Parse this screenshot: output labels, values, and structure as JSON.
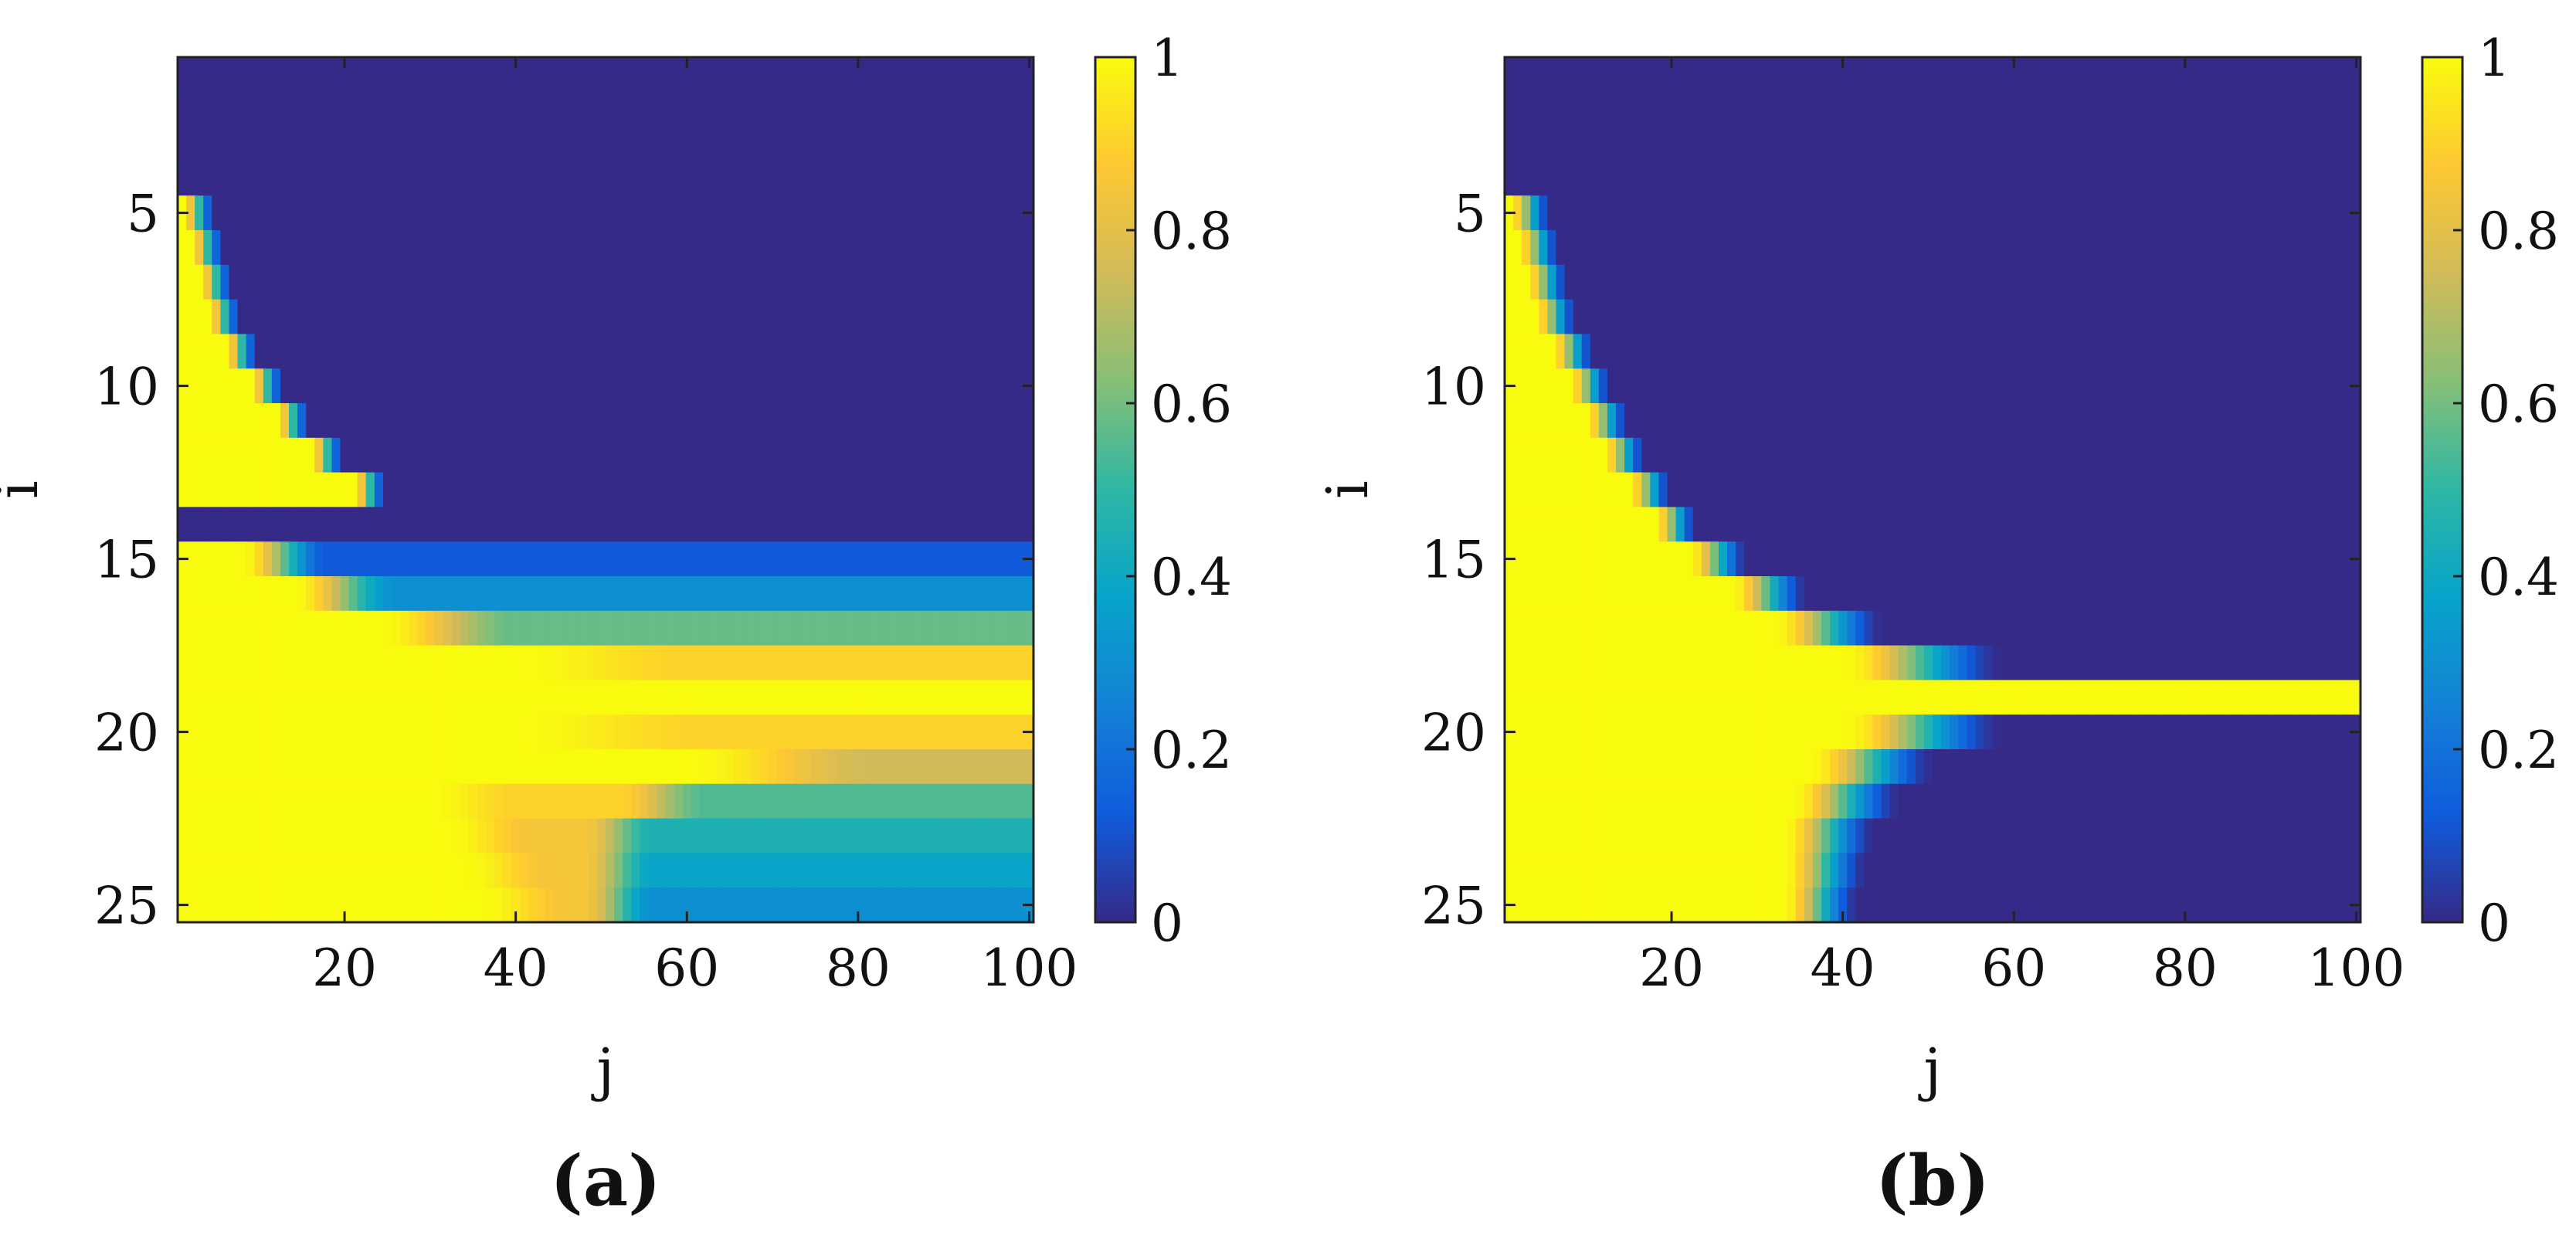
{
  "figure": {
    "panels": [
      {
        "label": "(a)",
        "xlabel": "j",
        "ylabel": "i"
      },
      {
        "label": "(b)",
        "xlabel": "j",
        "ylabel": "i"
      }
    ],
    "colormap": {
      "name": "parula",
      "stops": [
        "#352A87",
        "#0F5CDD",
        "#1481D6",
        "#06A4CA",
        "#2EB7A4",
        "#87BF77",
        "#D1BB59",
        "#FEC832",
        "#F9FB0E"
      ]
    }
  },
  "chart_data": [
    {
      "type": "heatmap",
      "panel_label": "(a)",
      "xlabel": "j",
      "ylabel": "i",
      "rows": 25,
      "cols": 100,
      "xlim": [
        0.5,
        100.5
      ],
      "ylim": [
        0.5,
        25.5
      ],
      "y_reversed": true,
      "x_ticks": [
        20,
        40,
        60,
        80,
        100
      ],
      "y_ticks": [
        5,
        10,
        15,
        20,
        25
      ],
      "x_tick_labels": [
        "20",
        "40",
        "60",
        "80",
        "100"
      ],
      "y_tick_labels": [
        "5",
        "10",
        "15",
        "20",
        "25"
      ],
      "colorbar": {
        "range": [
          0,
          1
        ],
        "ticks": [
          0,
          0.2,
          0.4,
          0.6,
          0.8,
          1
        ],
        "tick_labels": [
          "0",
          "0.2",
          "0.4",
          "0.6",
          "0.8",
          "1"
        ]
      },
      "front_onset_column_by_row": [
        200,
        200,
        200,
        200,
        1,
        2,
        3,
        4,
        6,
        9,
        12,
        16,
        21,
        28,
        999,
        999,
        999,
        999,
        999,
        999,
        999,
        999,
        999,
        999,
        999
      ],
      "front_width_columns": 4,
      "row_plateau_value": [
        0,
        0,
        0,
        0,
        0,
        0,
        0,
        0,
        0,
        0,
        0,
        0,
        0,
        0,
        0.12,
        0.3,
        0.58,
        0.9,
        1.0,
        0.9,
        0.75,
        0.55,
        0.45,
        0.38,
        0.3
      ],
      "row_mid_relax_column": [
        0,
        0,
        0,
        0,
        0,
        0,
        0,
        0,
        0,
        0,
        0,
        0,
        0,
        0,
        8,
        14,
        24,
        40,
        0,
        40,
        60,
        52,
        48,
        48,
        48
      ],
      "row_mid_relax_width": [
        1,
        1,
        1,
        1,
        1,
        1,
        1,
        1,
        1,
        1,
        1,
        1,
        1,
        1,
        10,
        12,
        16,
        20,
        1,
        22,
        22,
        10,
        8,
        8,
        8
      ],
      "row_tail_start_column": [
        0,
        0,
        0,
        0,
        0,
        0,
        0,
        0,
        0,
        0,
        0,
        0,
        0,
        0,
        0,
        0,
        0,
        0,
        0,
        0,
        0,
        30,
        32,
        34,
        36
      ],
      "row_tail_mid_value": [
        0,
        0,
        0,
        0,
        0,
        0,
        0,
        0,
        0,
        0,
        0,
        0,
        0,
        0,
        0,
        0,
        0,
        0,
        0,
        0,
        0,
        0.9,
        0.85,
        0.85,
        0.85
      ]
    },
    {
      "type": "heatmap",
      "panel_label": "(b)",
      "xlabel": "j",
      "ylabel": "i",
      "rows": 25,
      "cols": 100,
      "xlim": [
        0.5,
        100.5
      ],
      "ylim": [
        0.5,
        25.5
      ],
      "y_reversed": true,
      "x_ticks": [
        20,
        40,
        60,
        80,
        100
      ],
      "y_ticks": [
        5,
        10,
        15,
        20,
        25
      ],
      "x_tick_labels": [
        "20",
        "40",
        "60",
        "80",
        "100"
      ],
      "y_tick_labels": [
        "5",
        "10",
        "15",
        "20",
        "25"
      ],
      "colorbar": {
        "range": [
          0,
          1
        ],
        "ticks": [
          0,
          0.2,
          0.4,
          0.6,
          0.8,
          1
        ],
        "tick_labels": [
          "0",
          "0.2",
          "0.4",
          "0.6",
          "0.8",
          "1"
        ]
      },
      "front_onset_column_by_row": [
        200,
        200,
        200,
        200,
        1,
        2,
        3,
        4,
        6,
        8,
        10,
        12,
        15,
        18,
        22,
        27,
        32,
        40,
        1000,
        40,
        36,
        34,
        33,
        33,
        33
      ],
      "front_width_columns": 5,
      "row_plateau_value": [
        0,
        0,
        0,
        0,
        0,
        0,
        0,
        0,
        0,
        0,
        0,
        0,
        0,
        0,
        0,
        0,
        0,
        0,
        1.0,
        0,
        0,
        0,
        0,
        0,
        0
      ],
      "row_decay_extent_columns": [
        0,
        0,
        0,
        0,
        0,
        0,
        0,
        0,
        0,
        0,
        0,
        0,
        0,
        0,
        2,
        4,
        8,
        14,
        0,
        14,
        10,
        8,
        6,
        5,
        4
      ]
    }
  ]
}
